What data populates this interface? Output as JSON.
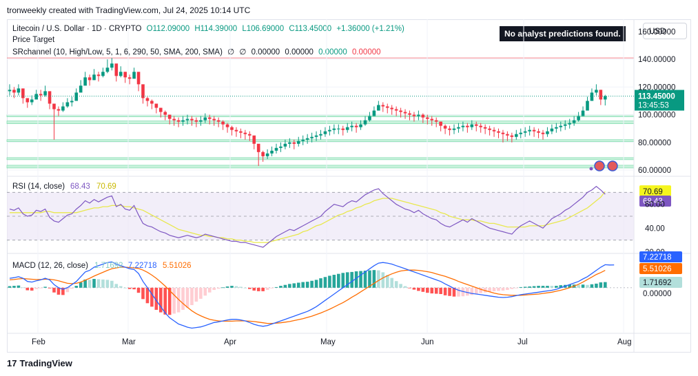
{
  "header": {
    "attribution": "tronweekly created with TradingView.com, Jul 24, 2025 10:14 UTC"
  },
  "legend": {
    "symbol": "Litecoin / U.S. Dollar · 1D · CRYPTO",
    "open": "O112.09000",
    "high": "H114.39000",
    "low": "L106.69000",
    "close": "C113.45000",
    "change": "+1.36000 (+1.21%)",
    "line2": "Price Target",
    "srchannel": "SRchannel (10, High/Low, 5, 1, 6, 290, 50, SMA, 200, SMA)",
    "sr_vals": [
      "∅",
      "∅",
      "0.00000",
      "0.00000"
    ],
    "sr_green": "0.00000",
    "sr_red": "0.00000"
  },
  "badge": "No analyst predictions found.",
  "currency": "USD",
  "footer": {
    "brand": "TradingView",
    "logo": "17"
  },
  "colors": {
    "up": "#089981",
    "down": "#f23645",
    "rsi": "#7e57c2",
    "rsi_ma": "#e8e84d",
    "macd": "#2962ff",
    "signal": "#ff6d00"
  },
  "chart_data": [
    {
      "type": "candlestick",
      "x_labels": [
        "Feb",
        "Mar",
        "Apr",
        "May",
        "Jun",
        "Jul",
        "Aug"
      ],
      "y_ticks": [
        "140.00000",
        "120.00000",
        "100.00000",
        "80.00000",
        "60.00000",
        "160.00000"
      ],
      "ylim": [
        56,
        163
      ],
      "last_price": "113.45000",
      "countdown": "13:45:53",
      "resistance": 141,
      "zones": [
        [
          67.5,
          69
        ],
        [
          61.5,
          63.5
        ],
        [
          80.5,
          82
        ],
        [
          93.5,
          95.5
        ],
        [
          98.5,
          100
        ]
      ],
      "close": [
        118,
        116,
        119,
        112,
        109,
        111,
        115,
        114,
        117,
        108,
        104,
        103,
        106,
        109,
        110,
        116,
        121,
        127,
        125,
        129,
        128,
        131,
        134,
        137,
        128,
        131,
        127,
        126,
        131,
        122,
        112,
        110,
        108,
        105,
        102,
        100,
        97,
        96,
        95,
        96,
        97,
        96,
        95,
        96,
        98,
        97,
        96,
        95,
        93,
        91,
        89,
        88,
        87,
        86,
        85,
        79,
        73,
        70,
        72,
        74,
        76,
        77,
        79,
        80,
        79,
        81,
        82,
        83,
        84,
        85,
        86,
        88,
        89,
        90,
        90,
        89,
        91,
        92,
        91,
        93,
        96,
        99,
        103,
        107,
        106,
        105,
        104,
        103,
        102,
        101,
        100,
        99,
        100,
        98,
        97,
        96,
        95,
        92,
        90,
        89,
        90,
        91,
        92,
        91,
        93,
        92,
        91,
        90,
        89,
        88,
        87,
        86,
        85,
        84,
        86,
        87,
        88,
        89,
        88,
        87,
        86,
        88,
        90,
        91,
        92,
        93,
        94,
        96,
        99,
        103,
        110,
        116,
        118,
        111,
        113.45
      ],
      "high": [
        122,
        120,
        122,
        116,
        112,
        114,
        118,
        118,
        121,
        112,
        107,
        106,
        109,
        112,
        113,
        119,
        125,
        131,
        129,
        133,
        131,
        134,
        140,
        141,
        133,
        135,
        131,
        129,
        134,
        126,
        116,
        113,
        111,
        108,
        105,
        103,
        100,
        99,
        98,
        99,
        100,
        99,
        98,
        99,
        101,
        100,
        99,
        98,
        96,
        94,
        92,
        91,
        90,
        89,
        88,
        84,
        77,
        74,
        75,
        77,
        79,
        80,
        82,
        83,
        82,
        84,
        85,
        86,
        87,
        88,
        89,
        91,
        92,
        93,
        93,
        92,
        94,
        95,
        94,
        96,
        99,
        102,
        106,
        110,
        109,
        108,
        107,
        106,
        105,
        104,
        103,
        102,
        103,
        101,
        100,
        99,
        98,
        95,
        93,
        92,
        93,
        94,
        95,
        94,
        96,
        95,
        94,
        93,
        92,
        91,
        90,
        89,
        88,
        87,
        89,
        90,
        91,
        92,
        91,
        90,
        89,
        91,
        93,
        94,
        95,
        96,
        97,
        99,
        102,
        106,
        113,
        119,
        122,
        118,
        114.39
      ],
      "low": [
        114,
        112,
        114,
        108,
        105,
        107,
        111,
        110,
        113,
        104,
        82,
        99,
        102,
        105,
        106,
        112,
        117,
        123,
        121,
        125,
        124,
        127,
        130,
        132,
        124,
        127,
        123,
        122,
        127,
        117,
        108,
        106,
        104,
        101,
        98,
        96,
        93,
        92,
        91,
        92,
        93,
        92,
        91,
        92,
        94,
        93,
        92,
        91,
        89,
        87,
        85,
        84,
        83,
        82,
        81,
        75,
        63,
        66,
        68,
        70,
        72,
        73,
        75,
        76,
        75,
        77,
        78,
        79,
        80,
        81,
        82,
        84,
        85,
        86,
        86,
        85,
        87,
        88,
        87,
        89,
        92,
        95,
        99,
        103,
        102,
        101,
        100,
        99,
        98,
        97,
        96,
        95,
        96,
        94,
        93,
        92,
        91,
        88,
        86,
        85,
        86,
        87,
        88,
        87,
        89,
        88,
        87,
        86,
        85,
        84,
        83,
        80,
        81,
        80,
        82,
        83,
        84,
        85,
        84,
        83,
        82,
        84,
        86,
        87,
        88,
        89,
        90,
        92,
        95,
        99,
        106,
        112,
        114,
        107,
        106.69
      ]
    },
    {
      "type": "line",
      "title": "RSI (14, close)",
      "values_label": [
        "68.43",
        "70.69"
      ],
      "y_ticks": [
        "70.69",
        "68.43",
        "60.00",
        "40.00",
        "20.00"
      ],
      "bands": [
        70,
        50,
        30
      ],
      "ylim": [
        20,
        80
      ],
      "rsi": [
        56,
        55,
        57,
        52,
        50,
        51,
        55,
        54,
        56,
        49,
        46,
        45,
        48,
        51,
        52,
        56,
        59,
        63,
        61,
        64,
        62,
        64,
        66,
        67,
        58,
        60,
        56,
        55,
        59,
        51,
        44,
        42,
        41,
        39,
        37,
        36,
        34,
        33,
        32,
        33,
        34,
        33,
        32,
        33,
        35,
        34,
        33,
        32,
        31,
        30,
        29,
        29,
        28,
        28,
        27,
        26,
        25,
        24,
        27,
        30,
        33,
        35,
        37,
        39,
        38,
        40,
        42,
        44,
        46,
        48,
        50,
        54,
        57,
        60,
        59,
        58,
        61,
        63,
        62,
        65,
        68,
        70,
        72,
        73,
        69,
        66,
        63,
        60,
        58,
        56,
        55,
        53,
        55,
        52,
        50,
        48,
        47,
        44,
        42,
        41,
        43,
        45,
        47,
        45,
        48,
        46,
        44,
        42,
        40,
        39,
        38,
        37,
        36,
        35,
        39,
        42,
        44,
        46,
        44,
        42,
        40,
        44,
        48,
        50,
        52,
        55,
        57,
        60,
        63,
        66,
        70,
        72,
        75,
        72,
        68.43
      ],
      "rsi_ma": [
        53,
        53,
        53,
        53,
        53,
        53,
        53,
        53,
        54,
        54,
        53,
        53,
        53,
        53,
        53,
        53,
        54,
        55,
        56,
        57,
        57,
        58,
        58,
        59,
        59,
        59,
        58,
        58,
        57,
        56,
        55,
        53,
        51,
        49,
        47,
        45,
        43,
        41,
        39,
        38,
        37,
        36,
        35,
        34,
        34,
        33,
        33,
        32,
        32,
        31,
        31,
        30,
        30,
        29,
        29,
        28,
        28,
        28,
        28,
        29,
        30,
        31,
        32,
        33,
        34,
        35,
        37,
        38,
        40,
        42,
        43,
        45,
        47,
        49,
        51,
        52,
        54,
        55,
        57,
        58,
        60,
        61,
        63,
        64,
        65,
        65,
        65,
        64,
        63,
        62,
        61,
        60,
        59,
        58,
        57,
        56,
        55,
        53,
        52,
        50,
        49,
        48,
        47,
        47,
        47,
        46,
        46,
        45,
        44,
        44,
        43,
        42,
        41,
        41,
        41,
        41,
        41,
        42,
        42,
        42,
        42,
        43,
        44,
        45,
        46,
        47,
        49,
        51,
        53,
        55,
        57,
        60,
        63,
        66,
        70.69
      ]
    },
    {
      "type": "bar",
      "title": "MACD (12, 26, close)",
      "values_label": [
        "1.71692",
        "7.22718",
        "5.51026"
      ],
      "y_ticks": [
        "7.22718",
        "5.51026",
        "1.71692",
        "0.00000"
      ],
      "ylim": [
        -14,
        10
      ],
      "macd": [
        3,
        3.2,
        3.5,
        3,
        2,
        1.8,
        2.2,
        2.5,
        3,
        2.5,
        1,
        0,
        -0.5,
        0,
        1,
        2,
        3.5,
        5,
        5.5,
        6.5,
        7,
        7.5,
        8,
        8.2,
        7.5,
        7,
        6.5,
        6,
        5.8,
        4.5,
        2,
        0,
        -2,
        -4,
        -6,
        -8,
        -9.5,
        -10.5,
        -11.5,
        -12,
        -12.5,
        -12.8,
        -12.6,
        -12.4,
        -12,
        -11.5,
        -11,
        -10.8,
        -10.5,
        -10.2,
        -10,
        -10,
        -10.2,
        -10.5,
        -11,
        -11.6,
        -12,
        -12.2,
        -12,
        -11.5,
        -11,
        -10.5,
        -10,
        -9.5,
        -9,
        -8.5,
        -8,
        -7.5,
        -6.8,
        -6,
        -5,
        -4,
        -3,
        -2,
        -1,
        0,
        1,
        2,
        3,
        4,
        5,
        6,
        7,
        7.8,
        8,
        7.8,
        7.5,
        7,
        6.5,
        6,
        5.5,
        5,
        4.5,
        4,
        3.5,
        3,
        2.5,
        2,
        1.2,
        0.5,
        -0.2,
        -0.8,
        -1.2,
        -1.5,
        -1.8,
        -2,
        -2.2,
        -2.4,
        -2.6,
        -2.8,
        -3,
        -3.1,
        -3,
        -2.8,
        -2.5,
        -2.2,
        -2,
        -1.8,
        -1.6,
        -1.4,
        -1.2,
        -1,
        -0.8,
        -0.5,
        0,
        0.5,
        1,
        1.5,
        2,
        2.8,
        3.5,
        4.5,
        5.5,
        6.5,
        7.3,
        7.2,
        7.22718
      ],
      "signal": [
        2.5,
        2.6,
        2.8,
        2.9,
        2.8,
        2.7,
        2.6,
        2.6,
        2.7,
        2.7,
        2.5,
        2.2,
        1.8,
        1.4,
        1.3,
        1.4,
        1.8,
        2.4,
        3,
        3.7,
        4.3,
        4.9,
        5.5,
        6,
        6.3,
        6.5,
        6.5,
        6.4,
        6.3,
        6.1,
        5.6,
        4.9,
        4,
        3,
        1.8,
        0.5,
        -0.9,
        -2.3,
        -3.7,
        -5,
        -6.2,
        -7.3,
        -8.2,
        -8.9,
        -9.5,
        -10,
        -10.3,
        -10.5,
        -10.6,
        -10.6,
        -10.6,
        -10.5,
        -10.5,
        -10.5,
        -10.6,
        -10.7,
        -10.9,
        -11.1,
        -11.3,
        -11.3,
        -11.2,
        -11.1,
        -10.9,
        -10.7,
        -10.4,
        -10.1,
        -9.8,
        -9.4,
        -9,
        -8.5,
        -8,
        -7.4,
        -6.8,
        -6.1,
        -5.4,
        -4.7,
        -3.9,
        -3,
        -2.2,
        -1.3,
        -0.4,
        0.5,
        1.4,
        2.3,
        3.1,
        3.8,
        4.4,
        4.9,
        5.3,
        5.5,
        5.6,
        5.6,
        5.5,
        5.3,
        5.1,
        4.8,
        4.4,
        4,
        3.6,
        3.1,
        2.6,
        2,
        1.5,
        1,
        0.5,
        0,
        -0.5,
        -0.9,
        -1.3,
        -1.7,
        -2,
        -2.2,
        -2.3,
        -2.4,
        -2.4,
        -2.4,
        -2.3,
        -2.2,
        -2.1,
        -2,
        -1.8,
        -1.6,
        -1.4,
        -1.1,
        -0.8,
        -0.4,
        0,
        0.5,
        1.1,
        1.8,
        2.6,
        3.4,
        4.2,
        4.8,
        5.51026
      ]
    }
  ]
}
